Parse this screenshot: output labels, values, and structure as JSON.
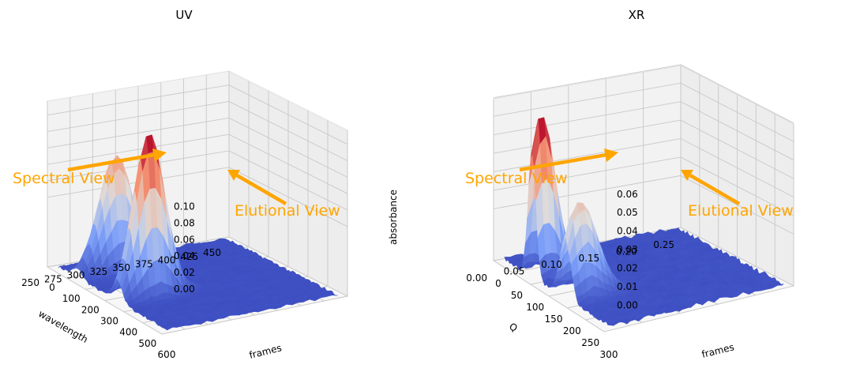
{
  "chart_data": [
    {
      "type": "surface",
      "title": "UV",
      "xlabel": "frames",
      "ylabel": "wavelength",
      "zlabel": "absorbance",
      "frames_ticks": [
        0,
        100,
        200,
        300,
        400,
        500,
        600
      ],
      "wavelength_ticks": [
        250,
        275,
        300,
        325,
        350,
        375,
        400,
        425,
        450
      ],
      "absorbance_ticks": [
        "0.00",
        "0.02",
        "0.04",
        "0.06",
        "0.08",
        "0.10"
      ],
      "xlim": [
        0,
        600
      ],
      "ylim": [
        250,
        450
      ],
      "zlim": [
        0,
        0.11
      ],
      "colormap": "coolwarm",
      "peaks": [
        {
          "frame": 150,
          "wavelength": 280,
          "absorbance": 0.065
        },
        {
          "frame": 330,
          "wavelength": 280,
          "absorbance": 0.11
        }
      ],
      "grid": true,
      "annotations": [
        "Spectral View",
        "Elutional View"
      ]
    },
    {
      "type": "surface",
      "title": "XR",
      "xlabel": "frames",
      "ylabel": "Q",
      "zlabel": "",
      "frames_ticks": [
        0,
        50,
        100,
        150,
        200,
        250,
        300
      ],
      "q_ticks": [
        "0.00",
        "0.05",
        "0.10",
        "0.15",
        "0.20",
        "0.25"
      ],
      "intensity_ticks": [
        "0.00",
        "0.01",
        "0.02",
        "0.03",
        "0.04",
        "0.05",
        "0.06"
      ],
      "xlim": [
        0,
        300
      ],
      "ylim": [
        0,
        0.27
      ],
      "zlim": [
        0,
        0.06
      ],
      "colormap": "coolwarm",
      "peaks": [
        {
          "frame": 90,
          "q": 0.01,
          "intensity": 0.06
        },
        {
          "frame": 170,
          "q": 0.01,
          "intensity": 0.035
        }
      ],
      "grid": true,
      "annotations": [
        "Spectral View",
        "Elutional View"
      ]
    }
  ],
  "colors": {
    "annotation": "#FFA500",
    "pane": "#F2F2F2",
    "grid": "#C8C8C8",
    "low": "#3B4CC0",
    "high": "#B40426"
  }
}
